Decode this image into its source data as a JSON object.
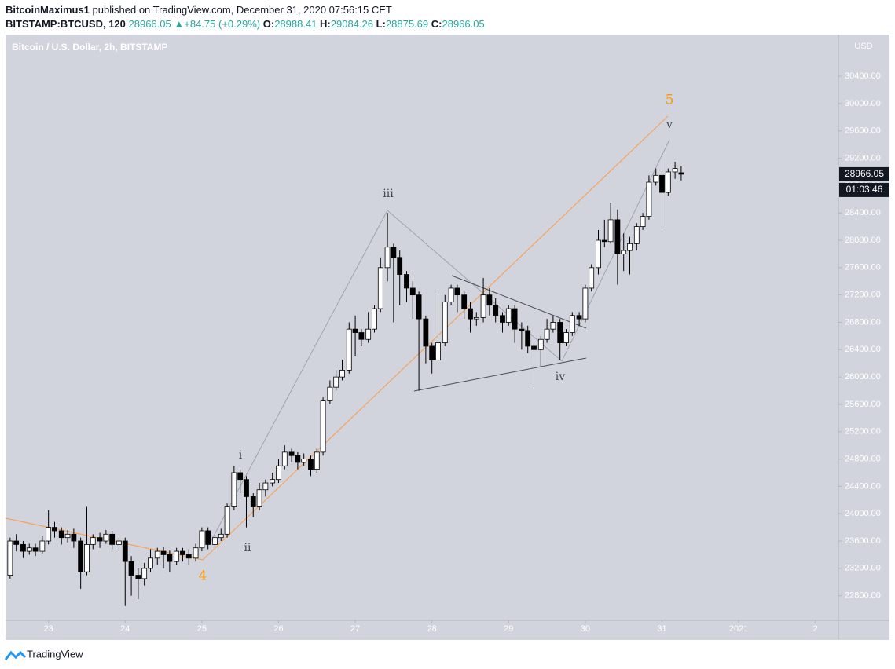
{
  "header": {
    "author": "BitcoinMaximus1",
    "published": "published on TradingView.com, December 31, 2020 07:56:15 CET",
    "symbol": "BITSTAMP:BTCUSD, 120",
    "last": "28966.05",
    "change": "+84.75 (+0.29%)",
    "ohlc": [
      {
        "label": "O:",
        "value": "28988.41"
      },
      {
        "label": "H:",
        "value": "29084.26"
      },
      {
        "label": "L:",
        "value": "28875.69"
      },
      {
        "label": "C:",
        "value": "28966.05"
      }
    ]
  },
  "chart_data": {
    "type": "candlestick",
    "title": "Bitcoin / U.S. Dollar, 2h, BITSTAMP",
    "currency": "USD",
    "up_color": "#ffffff",
    "down_color": "#000000",
    "price_tag": "28966.05",
    "countdown": "01:03:46",
    "xlim": [
      22.44,
      33.3
    ],
    "xticks": [
      23,
      24,
      25,
      26,
      27,
      28,
      29,
      30,
      31,
      {
        "value": 32,
        "label": "2021"
      },
      {
        "value": 33,
        "label": "2"
      }
    ],
    "ylim": [
      22440,
      31010
    ],
    "yticks": [
      {
        "value": 22800,
        "label": "22800.00"
      },
      {
        "value": 23200,
        "label": "23200.00"
      },
      {
        "value": 23600,
        "label": "23600.00"
      },
      {
        "value": 24000,
        "label": "24000.00"
      },
      {
        "value": 24400,
        "label": "24400.00"
      },
      {
        "value": 24800,
        "label": "24800.00"
      },
      {
        "value": 25200,
        "label": "25200.00"
      },
      {
        "value": 25600,
        "label": "25600.00"
      },
      {
        "value": 26000,
        "label": "26000.00"
      },
      {
        "value": 26400,
        "label": "26400.00"
      },
      {
        "value": 26800,
        "label": "26800.00"
      },
      {
        "value": 27200,
        "label": "27200.00"
      },
      {
        "value": 27600,
        "label": "27600.00"
      },
      {
        "value": 28000,
        "label": "28000.00"
      },
      {
        "value": 28400,
        "label": "28400.00"
      },
      {
        "value": 28800,
        "label": "28800.00"
      },
      {
        "value": 29200,
        "label": "29200.00"
      },
      {
        "value": 29600,
        "label": "29600.00"
      },
      {
        "value": 30000,
        "label": "30000.00"
      },
      {
        "value": 30400,
        "label": "30400.00"
      }
    ],
    "annotations": [
      "i",
      "ii",
      "iii",
      "iv",
      "v",
      "4",
      "5"
    ],
    "ohlc": [
      [
        22.5,
        23100,
        23650,
        23050,
        23600
      ],
      [
        22.58,
        23600,
        23700,
        23450,
        23550
      ],
      [
        22.67,
        23550,
        23600,
        23350,
        23450
      ],
      [
        22.75,
        23450,
        23560,
        23400,
        23500
      ],
      [
        22.83,
        23500,
        23560,
        23380,
        23450
      ],
      [
        22.92,
        23450,
        23680,
        23420,
        23600
      ],
      [
        23,
        23600,
        24050,
        23550,
        23800
      ],
      [
        23.08,
        23800,
        23880,
        23650,
        23750
      ],
      [
        23.17,
        23750,
        23800,
        23550,
        23650
      ],
      [
        23.25,
        23650,
        23760,
        23580,
        23700
      ],
      [
        23.33,
        23700,
        23780,
        23500,
        23600
      ],
      [
        23.42,
        23600,
        23650,
        22900,
        23150
      ],
      [
        23.5,
        23150,
        24100,
        23100,
        23550
      ],
      [
        23.58,
        23550,
        23700,
        23480,
        23650
      ],
      [
        23.67,
        23650,
        23720,
        23500,
        23600
      ],
      [
        23.75,
        23600,
        23760,
        23560,
        23700
      ],
      [
        23.83,
        23700,
        23750,
        23480,
        23550
      ],
      [
        23.92,
        23550,
        23650,
        23450,
        23600
      ],
      [
        24,
        23600,
        23650,
        22650,
        23300
      ],
      [
        24.08,
        23300,
        23380,
        22800,
        23100
      ],
      [
        24.17,
        23100,
        23200,
        22750,
        23050
      ],
      [
        24.25,
        23050,
        23280,
        22950,
        23200
      ],
      [
        24.33,
        23200,
        23480,
        23150,
        23350
      ],
      [
        24.42,
        23350,
        23500,
        23250,
        23450
      ],
      [
        24.5,
        23450,
        23520,
        23200,
        23400
      ],
      [
        24.58,
        23400,
        23460,
        23150,
        23300
      ],
      [
        24.67,
        23300,
        23500,
        23250,
        23450
      ],
      [
        24.75,
        23450,
        23500,
        23300,
        23400
      ],
      [
        24.83,
        23400,
        23480,
        23250,
        23350
      ],
      [
        24.92,
        23350,
        23560,
        23300,
        23500
      ],
      [
        25,
        23500,
        23800,
        23450,
        23750
      ],
      [
        25.08,
        23750,
        23800,
        23480,
        23550
      ],
      [
        25.17,
        23550,
        23700,
        23500,
        23650
      ],
      [
        25.25,
        23650,
        23780,
        23600,
        23700
      ],
      [
        25.33,
        23700,
        24150,
        23650,
        24100
      ],
      [
        25.42,
        24100,
        24700,
        24050,
        24600
      ],
      [
        25.5,
        24600,
        24650,
        24300,
        24500
      ],
      [
        25.58,
        24500,
        24550,
        23800,
        24250
      ],
      [
        25.67,
        24250,
        24300,
        23950,
        24100
      ],
      [
        25.75,
        24100,
        24450,
        24050,
        24350
      ],
      [
        25.83,
        24350,
        24500,
        24250,
        24450
      ],
      [
        25.92,
        24450,
        24600,
        24400,
        24500
      ],
      [
        26,
        24500,
        24800,
        24450,
        24700
      ],
      [
        26.08,
        24700,
        25000,
        24650,
        24900
      ],
      [
        26.17,
        24900,
        24950,
        24750,
        24850
      ],
      [
        26.25,
        24850,
        24900,
        24650,
        24750
      ],
      [
        26.33,
        24750,
        24880,
        24700,
        24800
      ],
      [
        26.42,
        24800,
        24850,
        24550,
        24650
      ],
      [
        26.5,
        24650,
        24950,
        24600,
        24900
      ],
      [
        26.58,
        24900,
        25700,
        24850,
        25650
      ],
      [
        26.67,
        25650,
        25950,
        25600,
        25850
      ],
      [
        26.75,
        25850,
        26100,
        25800,
        26000
      ],
      [
        26.83,
        26000,
        26250,
        25950,
        26100
      ],
      [
        26.92,
        26100,
        26800,
        26050,
        26700
      ],
      [
        27,
        26700,
        26900,
        26300,
        26650
      ],
      [
        27.08,
        26650,
        26700,
        26450,
        26550
      ],
      [
        27.17,
        26550,
        26950,
        26500,
        26700
      ],
      [
        27.25,
        26700,
        27050,
        26650,
        27000
      ],
      [
        27.33,
        27000,
        27750,
        26950,
        27600
      ],
      [
        27.42,
        27600,
        28400,
        27400,
        27900
      ],
      [
        27.5,
        27900,
        27950,
        26800,
        27750
      ],
      [
        27.58,
        27750,
        27850,
        27050,
        27500
      ],
      [
        27.67,
        27500,
        27550,
        27100,
        27300
      ],
      [
        27.75,
        27300,
        27400,
        26850,
        27200
      ],
      [
        27.83,
        27200,
        27250,
        25800,
        26850
      ],
      [
        27.92,
        26850,
        26900,
        26200,
        26450
      ],
      [
        28,
        26450,
        26500,
        26050,
        26250
      ],
      [
        28.08,
        26250,
        27250,
        26200,
        26500
      ],
      [
        28.17,
        26500,
        27200,
        26450,
        27100
      ],
      [
        28.25,
        27100,
        27350,
        27050,
        27300
      ],
      [
        28.33,
        27300,
        27350,
        26950,
        27200
      ],
      [
        28.42,
        27200,
        27250,
        26850,
        27000
      ],
      [
        28.5,
        27000,
        27100,
        26650,
        26850
      ],
      [
        28.58,
        26850,
        26950,
        26750,
        26870
      ],
      [
        28.67,
        26870,
        27450,
        26800,
        27200
      ],
      [
        28.75,
        27200,
        27300,
        26900,
        27050
      ],
      [
        28.83,
        27050,
        27150,
        26800,
        26900
      ],
      [
        28.92,
        26900,
        26950,
        26650,
        26800
      ],
      [
        29,
        26800,
        27050,
        26750,
        27000
      ],
      [
        29.08,
        27000,
        27050,
        26500,
        26700
      ],
      [
        29.17,
        26700,
        26800,
        26400,
        26680
      ],
      [
        29.25,
        26680,
        26750,
        26350,
        26450
      ],
      [
        29.33,
        26450,
        26500,
        25850,
        26400
      ],
      [
        29.42,
        26400,
        26600,
        26150,
        26550
      ],
      [
        29.5,
        26550,
        26850,
        26500,
        26700
      ],
      [
        29.58,
        26700,
        26900,
        26650,
        26800
      ],
      [
        29.67,
        26800,
        26850,
        26250,
        26500
      ],
      [
        29.75,
        26500,
        26700,
        26450,
        26650
      ],
      [
        29.83,
        26650,
        26950,
        26600,
        26900
      ],
      [
        29.92,
        26900,
        26950,
        26750,
        26850
      ],
      [
        30,
        26850,
        27350,
        26800,
        27300
      ],
      [
        30.08,
        27300,
        27650,
        27250,
        27600
      ],
      [
        30.17,
        27600,
        28150,
        27500,
        28000
      ],
      [
        30.25,
        28000,
        28300,
        27900,
        27980
      ],
      [
        30.33,
        27980,
        28550,
        27950,
        28300
      ],
      [
        30.42,
        28300,
        28450,
        27350,
        27800
      ],
      [
        30.5,
        27800,
        28100,
        27550,
        27850
      ],
      [
        30.58,
        27850,
        28050,
        27500,
        27950
      ],
      [
        30.67,
        27950,
        28250,
        27850,
        28200
      ],
      [
        30.75,
        28200,
        28400,
        28150,
        28350
      ],
      [
        30.83,
        28350,
        28950,
        28300,
        28850
      ],
      [
        30.92,
        28850,
        29050,
        28800,
        28950
      ],
      [
        31,
        28950,
        29300,
        28200,
        28700
      ],
      [
        31.08,
        28700,
        29050,
        28650,
        29000
      ],
      [
        31.17,
        29000,
        29150,
        28900,
        29050
      ],
      [
        31.25,
        28988.41,
        29084.26,
        28875.69,
        28966.05
      ]
    ]
  },
  "footer": {
    "brand": "TradingView"
  }
}
